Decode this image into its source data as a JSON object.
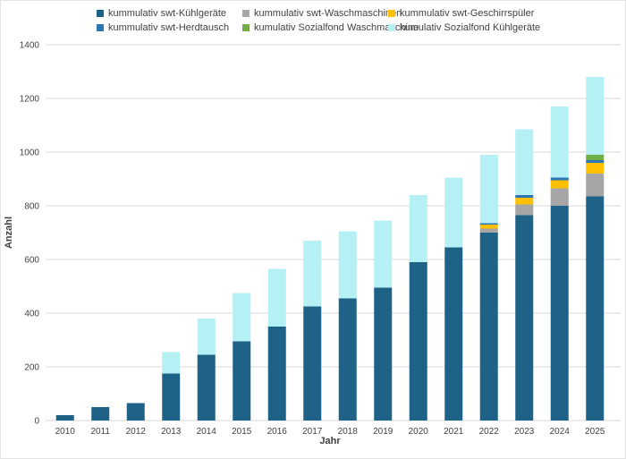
{
  "legend": {
    "items": [
      {
        "label": "kummulativ swt-Kühlgeräte",
        "color": "#1F6287"
      },
      {
        "label": "kummulativ swt-Waschmaschinen",
        "color": "#A6A6A6"
      },
      {
        "label": "kummulativ swt-Geschirrspüler",
        "color": "#FFC000"
      },
      {
        "label": "kummulativ swt-Herdtausch",
        "color": "#2E75B6"
      },
      {
        "label": "kumulativ Sozialfond Waschmaschine",
        "color": "#70AD47"
      },
      {
        "label": "kumulativ Sozialfond Kühlgeräte",
        "color": "#B4F0F4"
      }
    ]
  },
  "chart_data": {
    "type": "bar",
    "stacked": true,
    "title": "",
    "xlabel": "Jahr",
    "ylabel": "Anzahl",
    "ylim": [
      0,
      1400
    ],
    "ytick_step": 200,
    "grid": true,
    "legend_position": "top",
    "categories": [
      "2010",
      "2011",
      "2012",
      "2013",
      "2014",
      "2015",
      "2016",
      "2017",
      "2018",
      "2019",
      "2020",
      "2021",
      "2022",
      "2023",
      "2024",
      "2025"
    ],
    "series": [
      {
        "name": "kummulativ swt-Kühlgeräte",
        "color": "#1F6287",
        "values": [
          20,
          50,
          65,
          175,
          245,
          295,
          350,
          425,
          455,
          495,
          590,
          645,
          700,
          765,
          800,
          835
        ]
      },
      {
        "name": "kummulativ swt-Waschmaschinen",
        "color": "#A6A6A6",
        "values": [
          0,
          0,
          0,
          0,
          0,
          0,
          0,
          0,
          0,
          0,
          0,
          0,
          15,
          40,
          65,
          85
        ]
      },
      {
        "name": "kummulativ swt-Geschirrspüler",
        "color": "#FFC000",
        "values": [
          0,
          0,
          0,
          0,
          0,
          0,
          0,
          0,
          0,
          0,
          0,
          0,
          15,
          25,
          30,
          40
        ]
      },
      {
        "name": "kummulativ swt-Herdtausch",
        "color": "#2E75B6",
        "values": [
          0,
          0,
          0,
          0,
          0,
          0,
          0,
          0,
          0,
          0,
          0,
          0,
          5,
          10,
          10,
          10
        ]
      },
      {
        "name": "kumulativ Sozialfond Waschmaschine",
        "color": "#70AD47",
        "values": [
          0,
          0,
          0,
          0,
          0,
          0,
          0,
          0,
          0,
          0,
          0,
          0,
          0,
          0,
          0,
          20
        ]
      },
      {
        "name": "kumulativ Sozialfond Kühlgeräte",
        "color": "#B4F0F4",
        "values": [
          0,
          0,
          0,
          80,
          135,
          180,
          215,
          245,
          250,
          250,
          250,
          260,
          255,
          245,
          265,
          290
        ]
      }
    ],
    "totals": [
      20,
      50,
      65,
      255,
      380,
      475,
      565,
      670,
      705,
      745,
      840,
      905,
      990,
      1085,
      1170,
      1280
    ],
    "colors": {
      "gridline": "#D9D9D9",
      "tick_text": "#404040"
    }
  }
}
